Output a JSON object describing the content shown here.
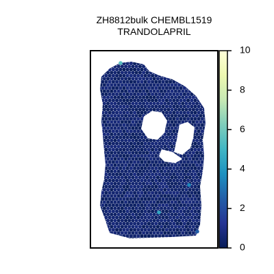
{
  "chart_data": {
    "type": "heatmap",
    "title_lines": [
      "ZH8812bulk CHEMBL1519",
      "TRANDOLAPRIL"
    ],
    "colorbar": {
      "min": 0,
      "max": 10,
      "ticks": [
        0,
        2,
        4,
        6,
        8,
        10
      ],
      "colormap": "YlGnBu",
      "stops": [
        "#ffffd9",
        "#edf8b1",
        "#c7e9b4",
        "#7fcdbb",
        "#41b6c4",
        "#1d91c0",
        "#225ea8",
        "#253494",
        "#081d58"
      ]
    },
    "xlabel": "",
    "ylabel": "",
    "grid": false,
    "typical_value": 0.5,
    "highlighted_spots": [
      {
        "label": "upper-left bright spot",
        "value": 5.5
      },
      {
        "label": "lower-middle bright spot",
        "value": 4.5
      },
      {
        "label": "right-side spot",
        "value": 3.5
      },
      {
        "label": "center spot",
        "value": 3.0
      },
      {
        "label": "lower-right spot",
        "value": 2.5
      }
    ]
  },
  "colors": {
    "background": "#ffffff",
    "frame": "#000000"
  }
}
